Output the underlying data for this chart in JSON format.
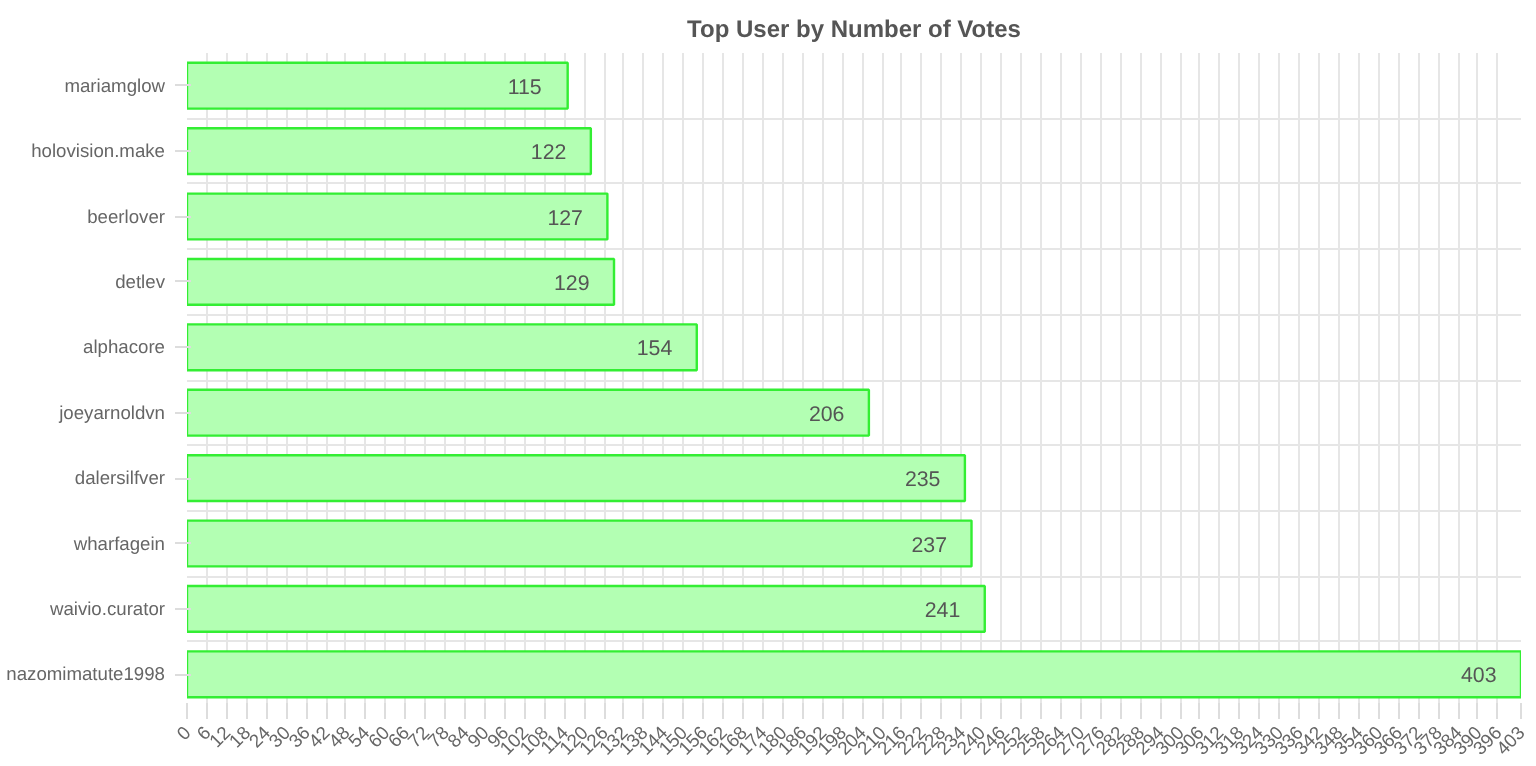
{
  "chart_data": {
    "type": "bar",
    "orientation": "horizontal",
    "title": "Top User by Number of Votes",
    "categories": [
      "mariamglow",
      "holovision.make",
      "beerlover",
      "detlev",
      "alphacore",
      "joeyarnoldvn",
      "dalersilfver",
      "wharfagein",
      "waivio.curator",
      "nazomimatute1998"
    ],
    "values": [
      115,
      122,
      127,
      129,
      154,
      206,
      235,
      237,
      241,
      403
    ],
    "color": "#b3ffb3",
    "data_labels": true,
    "grid": true,
    "legend": false,
    "xlim": [
      0,
      403
    ],
    "xticks": [
      0,
      6,
      12,
      18,
      24,
      30,
      36,
      42,
      48,
      54,
      60,
      66,
      72,
      78,
      84,
      90,
      96,
      102,
      108,
      114,
      120,
      126,
      132,
      138,
      144,
      150,
      156,
      162,
      168,
      174,
      180,
      186,
      192,
      198,
      204,
      210,
      216,
      222,
      228,
      234,
      240,
      246,
      252,
      258,
      264,
      270,
      276,
      282,
      288,
      294,
      300,
      306,
      312,
      318,
      324,
      330,
      336,
      342,
      348,
      354,
      360,
      366,
      372,
      378,
      384,
      390,
      396,
      403
    ]
  }
}
